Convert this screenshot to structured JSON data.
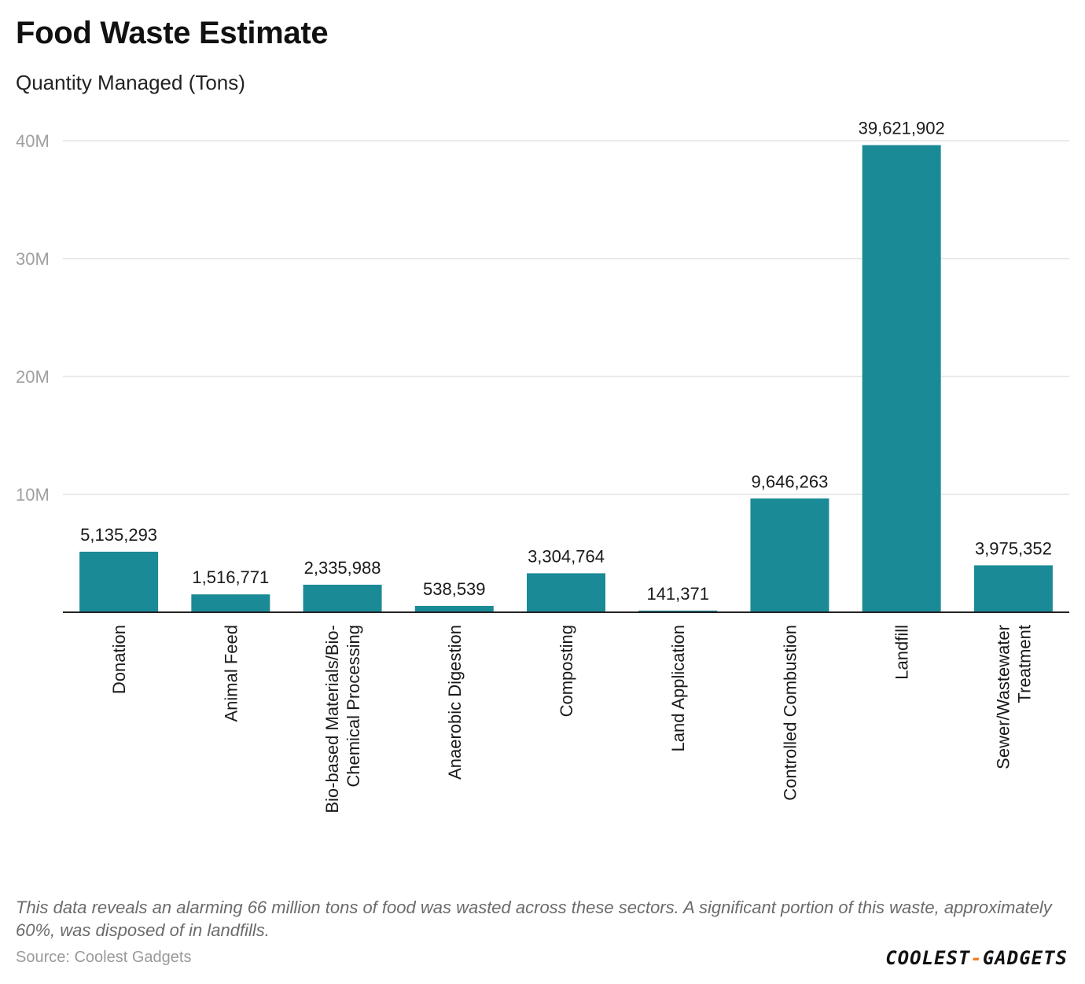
{
  "header": {
    "title": "Food Waste Estimate",
    "subtitle": "Quantity Managed (Tons)"
  },
  "chart_data": {
    "type": "bar",
    "title": "Food Waste Estimate",
    "ylabel": "Quantity Managed (Tons)",
    "xlabel": "",
    "ylim": [
      0,
      40000000
    ],
    "yticks": [
      {
        "value": 10000000,
        "label": "10M"
      },
      {
        "value": 20000000,
        "label": "20M"
      },
      {
        "value": 30000000,
        "label": "30M"
      },
      {
        "value": 40000000,
        "label": "40M"
      }
    ],
    "grid": true,
    "categories": [
      [
        "Donation"
      ],
      [
        "Animal Feed"
      ],
      [
        "Bio-based Materials/Bio-",
        "Chemical Processing"
      ],
      [
        "Anaerobic Digestion"
      ],
      [
        "Composting"
      ],
      [
        "Land Application"
      ],
      [
        "Controlled Combustion"
      ],
      [
        "Landfill"
      ],
      [
        "Sewer/Wastewater",
        "Treatment"
      ]
    ],
    "values": [
      5135293,
      1516771,
      2335988,
      538539,
      3304764,
      141371,
      9646263,
      39621902,
      3975352
    ],
    "value_labels": [
      "5,135,293",
      "1,516,771",
      "2,335,988",
      "538,539",
      "3,304,764",
      "141,371",
      "9,646,263",
      "39,621,902",
      "3,975,352"
    ],
    "bar_color": "#1b8a97"
  },
  "footer": {
    "note": "This data reveals an alarming 66 million tons of food was wasted across these sectors. A significant portion of this waste, approximately 60%, was disposed of in landfills.",
    "source": "Source: Coolest Gadgets",
    "logo_left": "COOLEST",
    "logo_dash": "-",
    "logo_right": "GADGETS"
  }
}
